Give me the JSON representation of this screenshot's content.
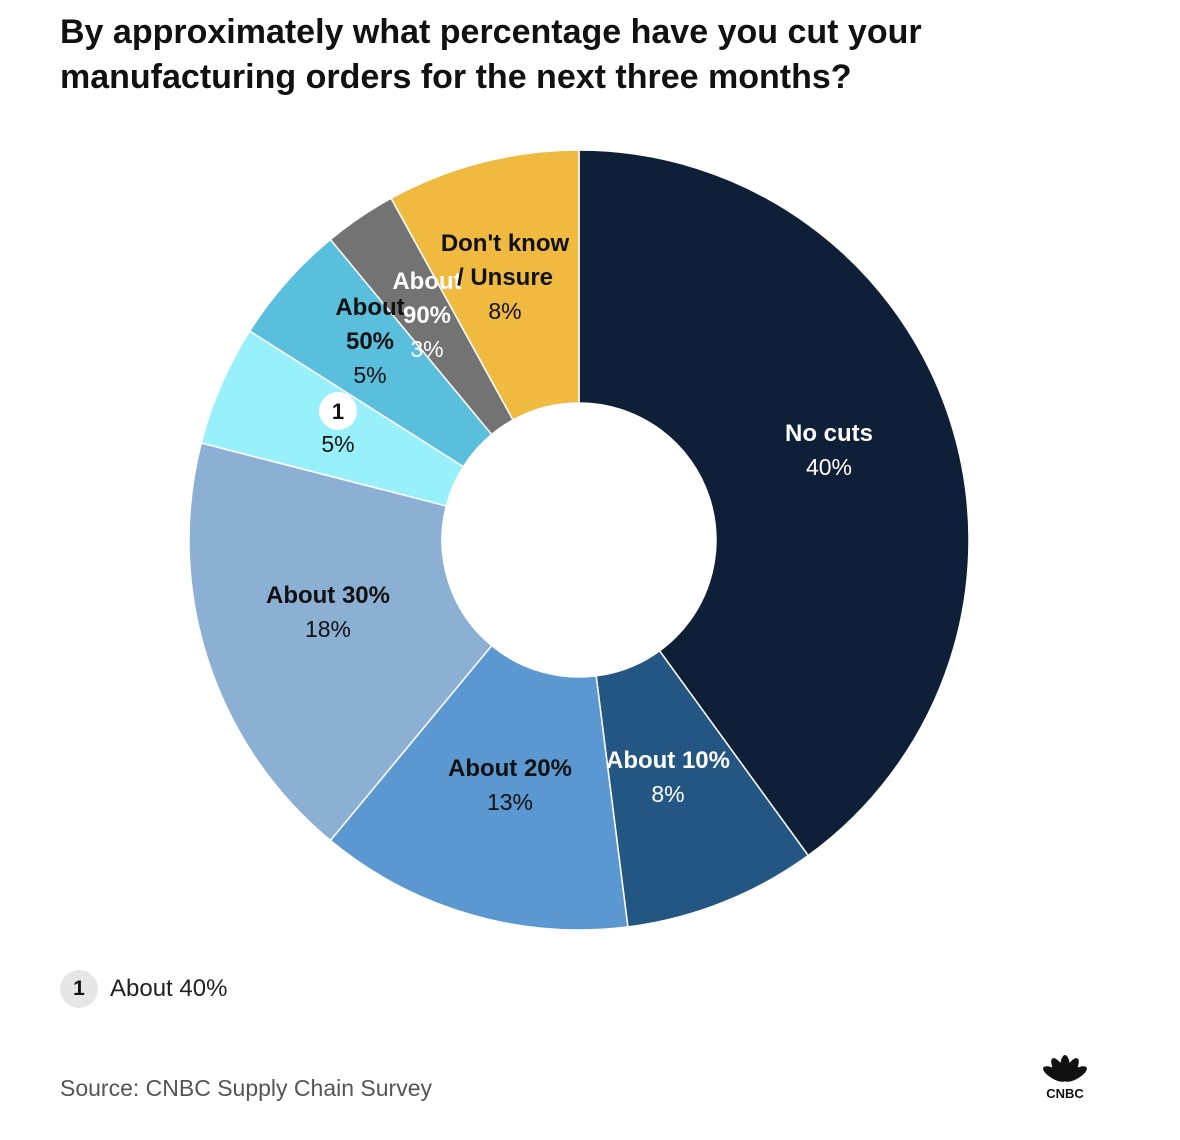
{
  "title": "By approximately what percentage have you cut your manufacturing orders for the next three months?",
  "chart_data": {
    "type": "pie",
    "variant": "donut",
    "slices": [
      {
        "label": "No cuts",
        "value": 40,
        "value_label": "40%",
        "color": "#0f1f38",
        "label_color": "#ffffff",
        "value_color": "#ffffff"
      },
      {
        "label": "About 10%",
        "value": 8,
        "value_label": "8%",
        "color": "#245684",
        "label_color": "#ffffff",
        "value_color": "#ffffff"
      },
      {
        "label": "About 20%",
        "value": 13,
        "value_label": "13%",
        "color": "#5b97d1",
        "label_color": "#111111",
        "value_color": "#111111"
      },
      {
        "label": "About 30%",
        "value": 18,
        "value_label": "18%",
        "color": "#8cb0d3",
        "label_color": "#111111",
        "value_color": "#111111"
      },
      {
        "label": "1",
        "value": 5,
        "value_label": "5%",
        "color": "#97f0fa",
        "label_color": "#111111",
        "value_color": "#111111",
        "badge": true
      },
      {
        "label": "About 50%",
        "value": 5,
        "value_label": "5%",
        "color": "#59bfdd",
        "label_color": "#111111",
        "value_color": "#111111"
      },
      {
        "label": "About 90%",
        "value": 3,
        "value_label": "3%",
        "color": "#737373",
        "label_color": "#ffffff",
        "value_color": "#ffffff"
      },
      {
        "label": "Don't know / Unsure",
        "value": 8,
        "value_label": "8%",
        "color": "#f0b940",
        "label_color": "#111111",
        "value_color": "#111111"
      }
    ]
  },
  "footnote": {
    "marker": "1",
    "text": "About 40%"
  },
  "source": "Source: CNBC Supply Chain Survey",
  "logo": {
    "text": "CNBC",
    "icon": "peacock-icon"
  }
}
